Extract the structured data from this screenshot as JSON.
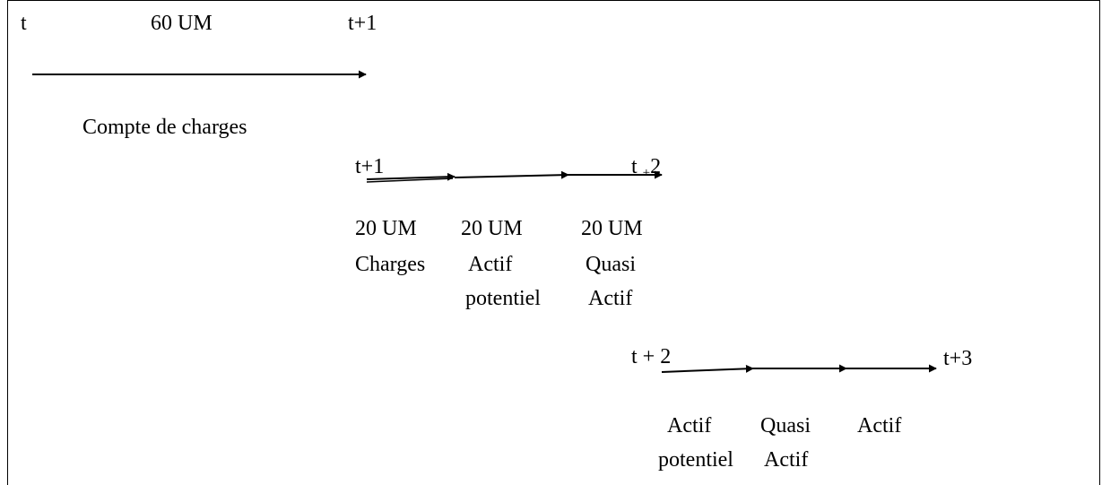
{
  "row1": {
    "start": "t",
    "amount": "60 UM",
    "end": "t+1",
    "caption": "Compte de charges"
  },
  "row2": {
    "start": "t+1",
    "end_prefix": "t",
    "end_sub": "+",
    "end_suffix": "2",
    "columns": [
      [
        "20 UM",
        "Charges"
      ],
      [
        "20 UM",
        "Actif",
        "potentiel"
      ],
      [
        "20 UM",
        "Quasi",
        "Actif"
      ]
    ]
  },
  "row3": {
    "start": "t + 2",
    "end": "t+3",
    "columns": [
      [
        "Actif",
        "potentiel"
      ],
      [
        "Quasi",
        "Actif"
      ],
      [
        "Actif"
      ]
    ]
  }
}
